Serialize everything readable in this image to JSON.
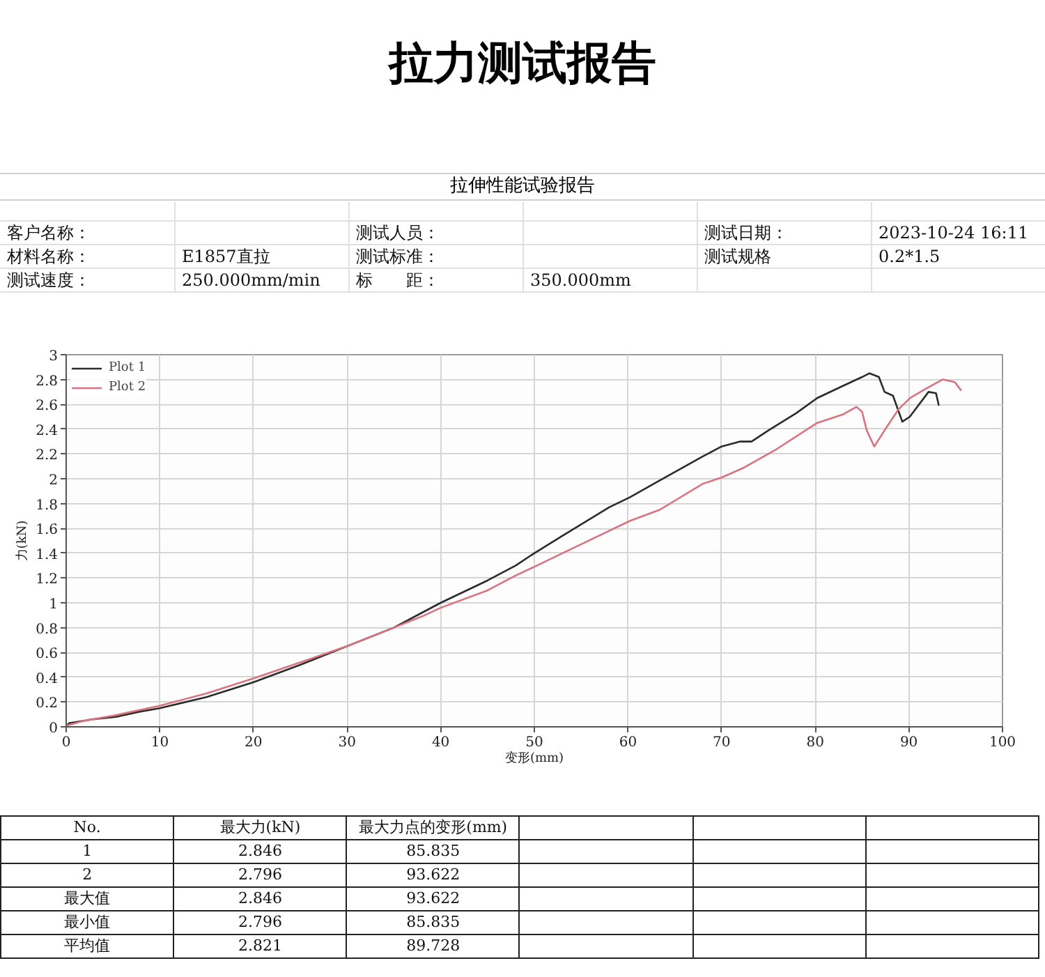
{
  "chart_data": {
    "type": "line",
    "title": "拉力测试报告",
    "subtitle": "拉伸性能试验报告",
    "xlabel": "变形(mm)",
    "ylabel": "力(kN)",
    "xlim": [
      0,
      100
    ],
    "xticks": [
      0,
      10,
      20,
      30,
      40,
      50,
      60,
      70,
      80,
      90,
      100
    ],
    "ylim": [
      0,
      3
    ],
    "yticks": [
      0,
      0.2,
      0.4,
      0.6,
      0.8,
      1,
      1.2,
      1.4,
      1.6,
      1.8,
      2,
      2.2,
      2.4,
      2.6,
      2.8,
      3
    ],
    "grid": true,
    "legend": "top left",
    "line_style": "solid",
    "series": [
      {
        "name": "Plot 1",
        "color": "#2b2b2b",
        "x": [
          0,
          0.3,
          2.8,
          5.3,
          7.7,
          10,
          15,
          20,
          25,
          30,
          35,
          38,
          40,
          45,
          48,
          50,
          53,
          58,
          60.2,
          63,
          68,
          70,
          72,
          73.2,
          75,
          78,
          80.2,
          83,
          85,
          85.8,
          86.8,
          87.4,
          88.3,
          89.3,
          90.1,
          92.1,
          92.9,
          93.2
        ],
        "values": [
          0,
          0.03,
          0.06,
          0.08,
          0.12,
          0.15,
          0.24,
          0.36,
          0.5,
          0.65,
          0.8,
          0.92,
          1.0,
          1.18,
          1.3,
          1.4,
          1.54,
          1.77,
          1.85,
          1.97,
          2.18,
          2.26,
          2.3,
          2.3,
          2.39,
          2.53,
          2.65,
          2.75,
          2.82,
          2.85,
          2.82,
          2.7,
          2.67,
          2.46,
          2.5,
          2.7,
          2.69,
          2.59
        ]
      },
      {
        "name": "Plot 2",
        "color": "#d9737f",
        "x": [
          0,
          2,
          5,
          10,
          15,
          20,
          25,
          30,
          35,
          38,
          40,
          45,
          48,
          50,
          53,
          60.2,
          63.4,
          68,
          70,
          72.4,
          75.9,
          80.2,
          83,
          84.4,
          85,
          85.5,
          86.3,
          87.4,
          88.9,
          90.1,
          91.9,
          93.6,
          94.9,
          95.6
        ],
        "values": [
          0.01,
          0.05,
          0.09,
          0.17,
          0.27,
          0.39,
          0.52,
          0.65,
          0.8,
          0.89,
          0.96,
          1.1,
          1.22,
          1.29,
          1.4,
          1.66,
          1.75,
          1.96,
          2.01,
          2.09,
          2.24,
          2.45,
          2.52,
          2.58,
          2.54,
          2.39,
          2.26,
          2.39,
          2.56,
          2.65,
          2.73,
          2.8,
          2.78,
          2.71
        ]
      }
    ],
    "annotations": [
      "客户名称：",
      "测试人员：",
      "测试日期：",
      "2023-10-24 16:11",
      "材料名称：",
      "E1857直拉",
      "测试标准：",
      "测试规格",
      "0.2*1.5",
      "测试速度：",
      "250.000mm/min",
      "标　　距：",
      "350.000mm",
      "No.",
      "最大力(kN)",
      "最大力点的变形(mm)",
      "1",
      "2.846",
      "85.835",
      "2",
      "2.796",
      "93.622",
      "最大值",
      "2.846",
      "93.622",
      "最小值",
      "2.796",
      "85.835",
      "平均值",
      "2.821",
      "89.728"
    ]
  }
}
